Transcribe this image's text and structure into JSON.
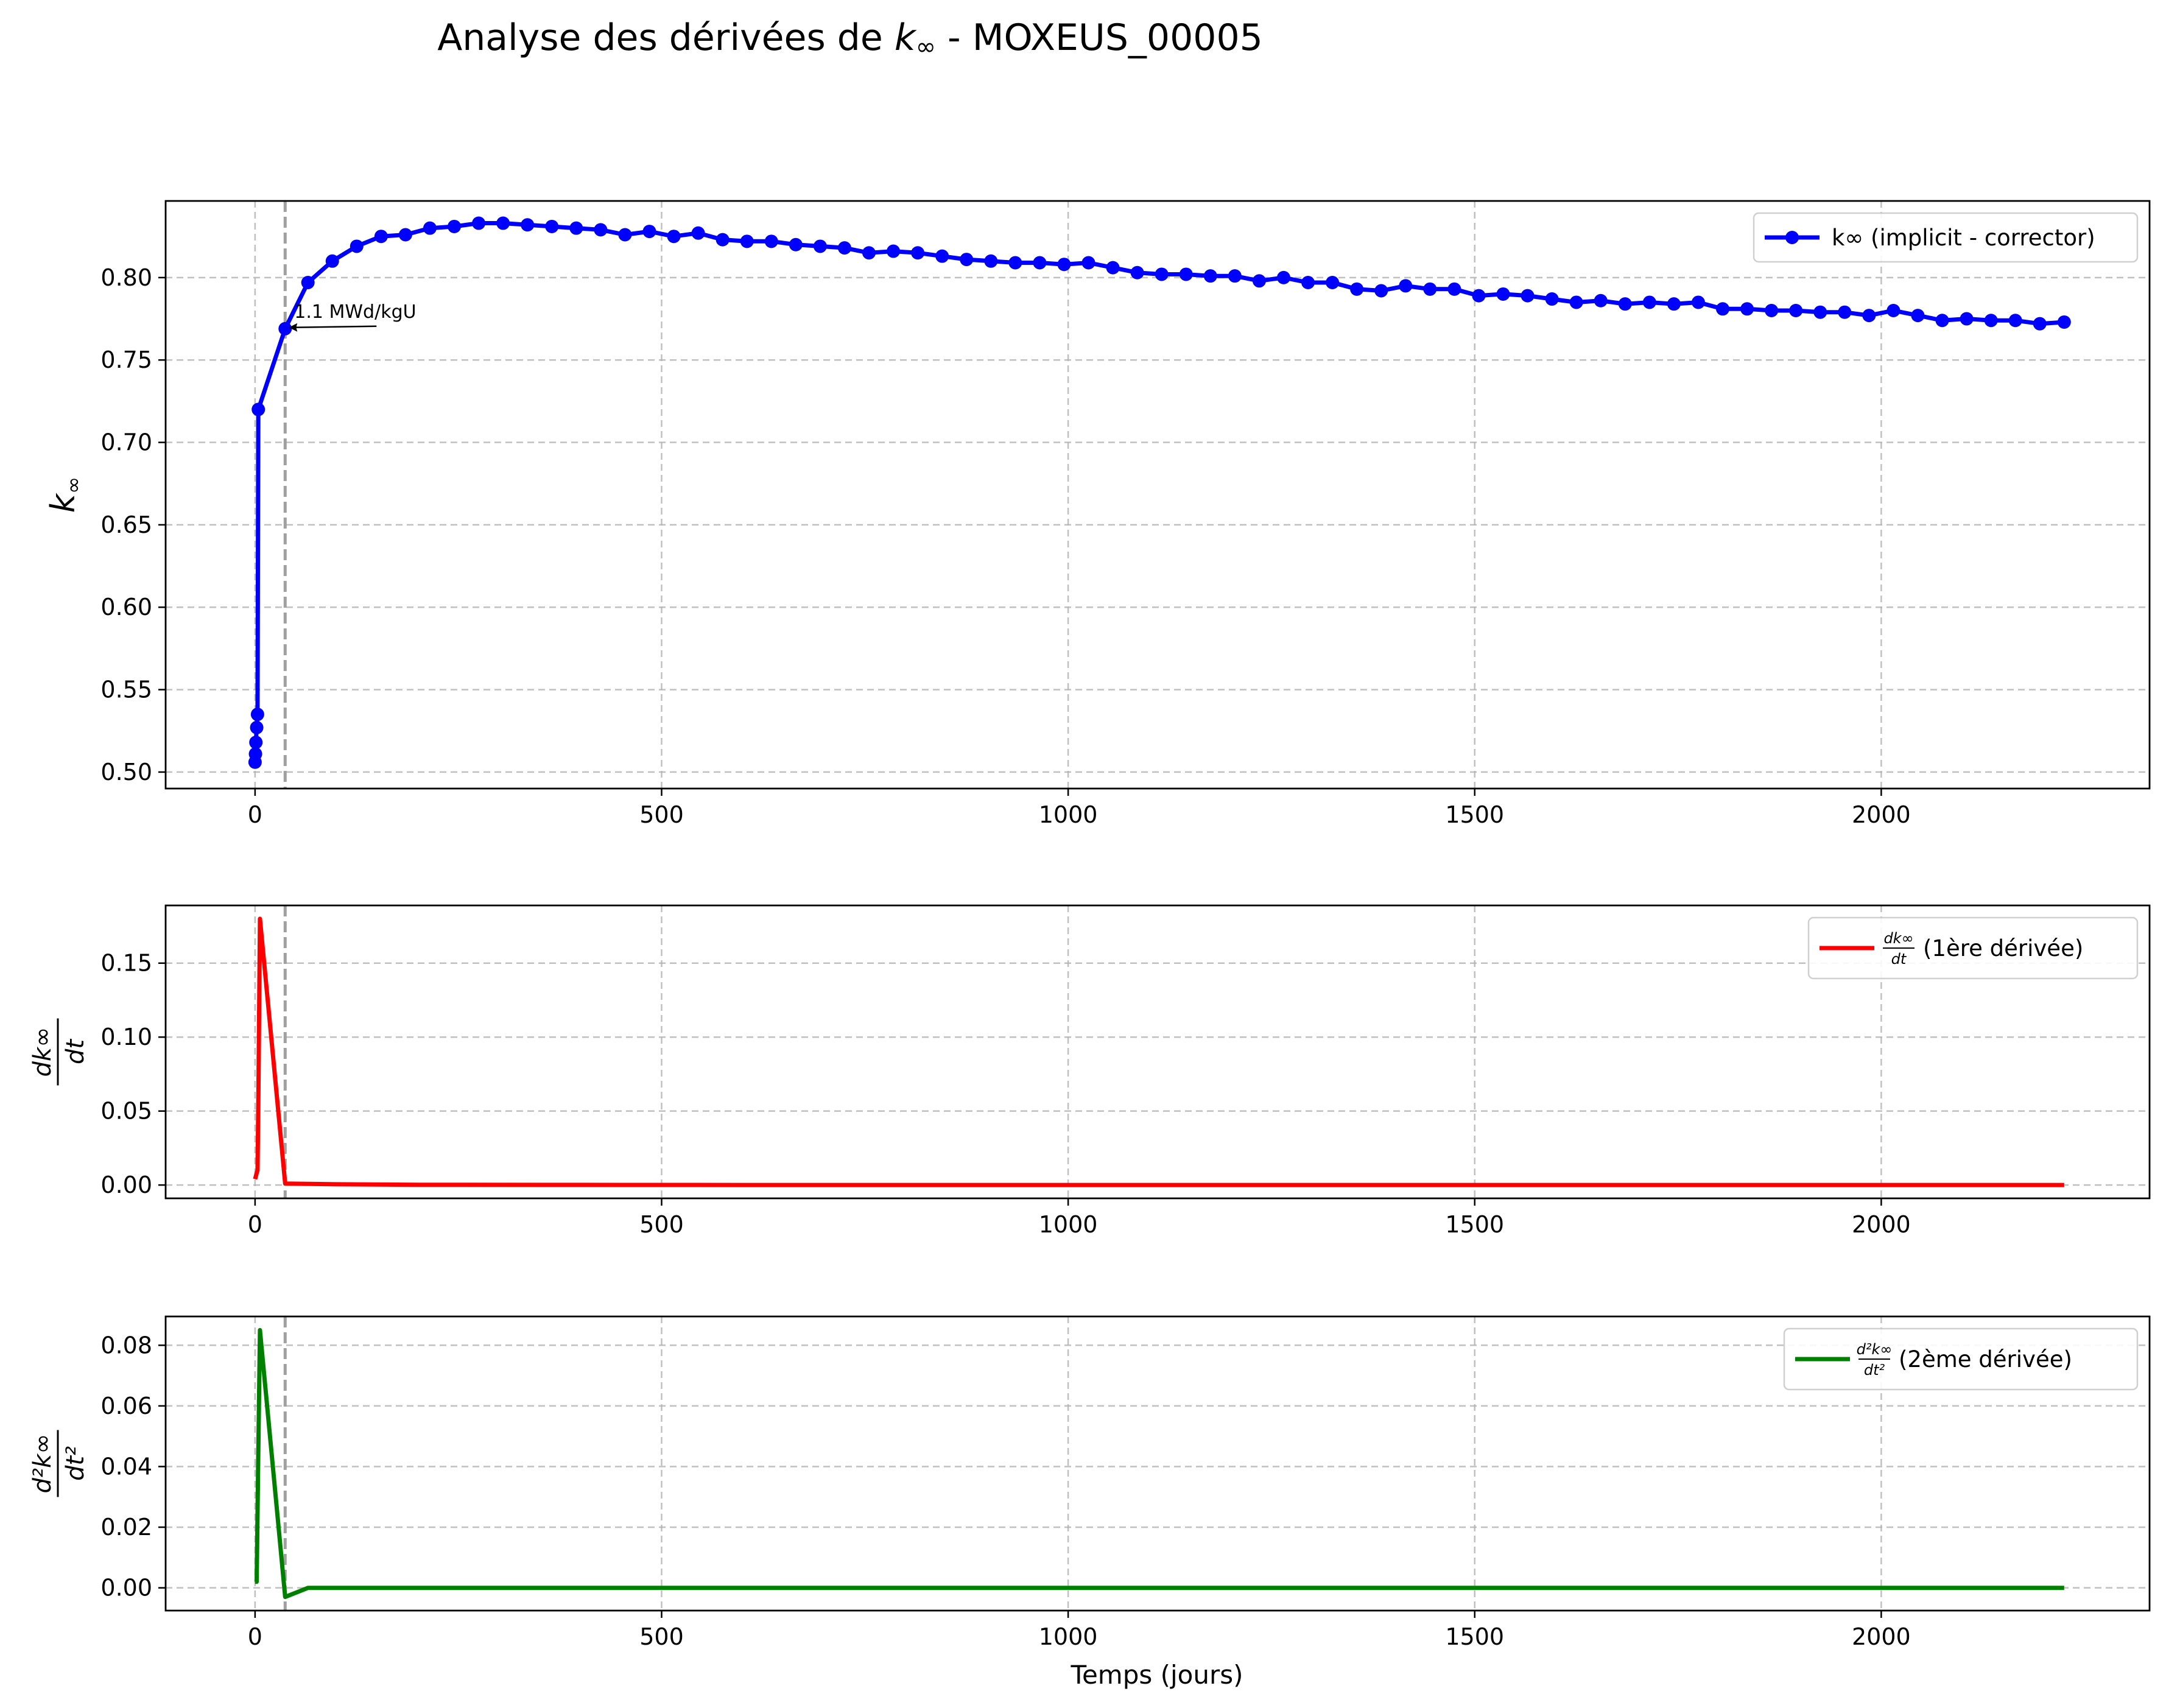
{
  "figure": {
    "title_prefix": "Analyse des dérivées de ",
    "title_var": "k",
    "title_sub": "∞",
    "title_suffix": " - MOXEUS_00005",
    "xlabel": "Temps (jours)"
  },
  "colors": {
    "k": "#0000ff",
    "d1": "#ff0000",
    "d2": "#008000",
    "grid": "#b0b0b0",
    "marker_line": "#a0a0a0"
  },
  "chart_data": [
    {
      "type": "line",
      "markers": true,
      "ylabel": "k∞",
      "legend": {
        "label": "k∞ (implicit - corrector)",
        "placement": "top-right"
      },
      "annotation": {
        "text": "1.1 MWd/kgU",
        "x": 37,
        "y": 0.769
      },
      "vertical_marker_x": 37,
      "xlim": [
        -110,
        2330
      ],
      "ylim": [
        0.49,
        0.8465
      ],
      "xticks": [
        0,
        500,
        1000,
        1500,
        2000
      ],
      "yticks": [
        0.5,
        0.55,
        0.6,
        0.65,
        0.7,
        0.75,
        0.8
      ],
      "ytick_labels": [
        "0.50",
        "0.55",
        "0.60",
        "0.65",
        "0.70",
        "0.75",
        "0.80"
      ],
      "grid": true,
      "series": [
        {
          "name": "k∞ (implicit - corrector)",
          "x": [
            0,
            0.5,
            1,
            2,
            3,
            4,
            37,
            65,
            95,
            125,
            155,
            185,
            215,
            245,
            275,
            305,
            335,
            365,
            395,
            425,
            455,
            485,
            515,
            545,
            575,
            605,
            635,
            665,
            695,
            725,
            755,
            785,
            815,
            845,
            875,
            905,
            935,
            965,
            995,
            1025,
            1055,
            1085,
            1115,
            1145,
            1175,
            1205,
            1235,
            1265,
            1295,
            1325,
            1355,
            1385,
            1415,
            1445,
            1475,
            1505,
            1535,
            1565,
            1595,
            1625,
            1655,
            1685,
            1715,
            1745,
            1775,
            1805,
            1835,
            1865,
            1895,
            1925,
            1955,
            1985,
            2015,
            2045,
            2075,
            2105,
            2135,
            2165,
            2195,
            2225
          ],
          "y": [
            0.506,
            0.511,
            0.518,
            0.527,
            0.535,
            0.72,
            0.769,
            0.797,
            0.81,
            0.819,
            0.825,
            0.826,
            0.83,
            0.831,
            0.833,
            0.833,
            0.832,
            0.831,
            0.83,
            0.829,
            0.826,
            0.828,
            0.825,
            0.827,
            0.823,
            0.822,
            0.822,
            0.82,
            0.819,
            0.818,
            0.815,
            0.816,
            0.815,
            0.813,
            0.811,
            0.81,
            0.809,
            0.809,
            0.808,
            0.809,
            0.806,
            0.803,
            0.802,
            0.802,
            0.801,
            0.801,
            0.798,
            0.8,
            0.797,
            0.797,
            0.793,
            0.792,
            0.795,
            0.793,
            0.793,
            0.789,
            0.79,
            0.789,
            0.787,
            0.785,
            0.786,
            0.784,
            0.785,
            0.784,
            0.785,
            0.781,
            0.781,
            0.78,
            0.78,
            0.779,
            0.779,
            0.777,
            0.78,
            0.777,
            0.774,
            0.775,
            0.774,
            0.774,
            0.772,
            0.773
          ]
        }
      ]
    },
    {
      "type": "line",
      "ylabel": "dk∞/dt",
      "legend": {
        "label": "(1ère dérivée)",
        "frac_num": "dk∞",
        "frac_den": "dt",
        "placement": "top-right"
      },
      "vertical_marker_x": 37,
      "xlim": [
        -110,
        2330
      ],
      "ylim": [
        -0.009,
        0.189
      ],
      "xticks": [
        0,
        500,
        1000,
        1500,
        2000
      ],
      "yticks": [
        0.0,
        0.05,
        0.1,
        0.15
      ],
      "ytick_labels": [
        "0.00",
        "0.05",
        "0.10",
        "0.15"
      ],
      "grid": true,
      "series": [
        {
          "name": "dk∞/dt (1ère dérivée)",
          "x": [
            0,
            1,
            2,
            3,
            4,
            6,
            37,
            65,
            100,
            200,
            400,
            600,
            800,
            1000,
            1200,
            1400,
            1600,
            1800,
            2000,
            2225
          ],
          "y": [
            0.004,
            0.006,
            0.008,
            0.01,
            0.055,
            0.18,
            0.001,
            0.0008,
            0.0005,
            0.0002,
            0.0001,
            0.0,
            0.0,
            0.0,
            0.0,
            0.0,
            0.0,
            0.0,
            0.0,
            0.0
          ]
        }
      ]
    },
    {
      "type": "line",
      "ylabel": "d²k∞/dt²",
      "legend": {
        "label": "(2ème dérivée)",
        "frac_num": "d²k∞",
        "frac_den": "dt²",
        "placement": "top-right"
      },
      "vertical_marker_x": 37,
      "xlim": [
        -110,
        2330
      ],
      "ylim": [
        -0.0075,
        0.0895
      ],
      "xticks": [
        0,
        500,
        1000,
        1500,
        2000
      ],
      "yticks": [
        0.0,
        0.02,
        0.04,
        0.06,
        0.08
      ],
      "ytick_labels": [
        "0.00",
        "0.02",
        "0.04",
        "0.06",
        "0.08"
      ],
      "grid": true,
      "series": [
        {
          "name": "d²k∞/dt² (2ème dérivée)",
          "x": [
            0,
            2,
            4,
            6,
            37,
            65,
            100,
            300,
            600,
            1000,
            1500,
            2000,
            2225
          ],
          "y": [
            0.002,
            0.002,
            0.045,
            0.085,
            -0.003,
            0.0,
            0.0,
            0.0,
            0.0,
            0.0,
            0.0,
            0.0,
            0.0
          ]
        }
      ]
    }
  ]
}
